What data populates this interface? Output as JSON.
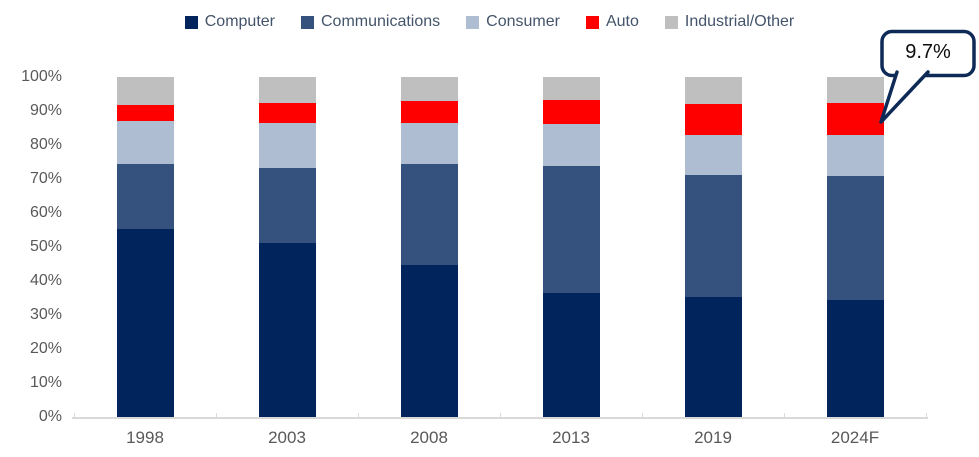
{
  "chart_data": {
    "type": "bar",
    "stacked": true,
    "percent_stacked": true,
    "title": "",
    "xlabel": "",
    "ylabel": "",
    "ylim": [
      0,
      100
    ],
    "grid": false,
    "legend_position": "top",
    "categories": [
      "1998",
      "2003",
      "2008",
      "2013",
      "2019",
      "2024F"
    ],
    "yticks": [
      "0%",
      "10%",
      "20%",
      "30%",
      "40%",
      "50%",
      "60%",
      "70%",
      "80%",
      "90%",
      "100%"
    ],
    "series": [
      {
        "name": "Computer",
        "color": "#01245C",
        "values": [
          55.4,
          51.2,
          44.6,
          36.5,
          35.4,
          34.3
        ]
      },
      {
        "name": "Communications",
        "color": "#35527E",
        "values": [
          19.1,
          22.1,
          29.7,
          37.2,
          35.9,
          36.5
        ]
      },
      {
        "name": "Consumer",
        "color": "#AFBDD2",
        "values": [
          12.5,
          13.2,
          12.2,
          12.6,
          11.7,
          12.0
        ]
      },
      {
        "name": "Auto",
        "color": "#FF0000",
        "values": [
          4.7,
          6.0,
          6.4,
          6.9,
          9.1,
          9.7
        ]
      },
      {
        "name": "Industrial/Other",
        "color": "#BFBFBF",
        "values": [
          8.3,
          7.5,
          7.1,
          6.8,
          7.9,
          7.5
        ]
      }
    ],
    "annotation": {
      "label": "9.7%",
      "category": "2024F",
      "series": "Auto"
    }
  },
  "colors": {
    "axis_line": "#D9D9D9",
    "tick_label": "#595959",
    "legend_text": "#44546A",
    "callout_border": "#0E2A57",
    "callout_fill": "#FFFFFF"
  }
}
